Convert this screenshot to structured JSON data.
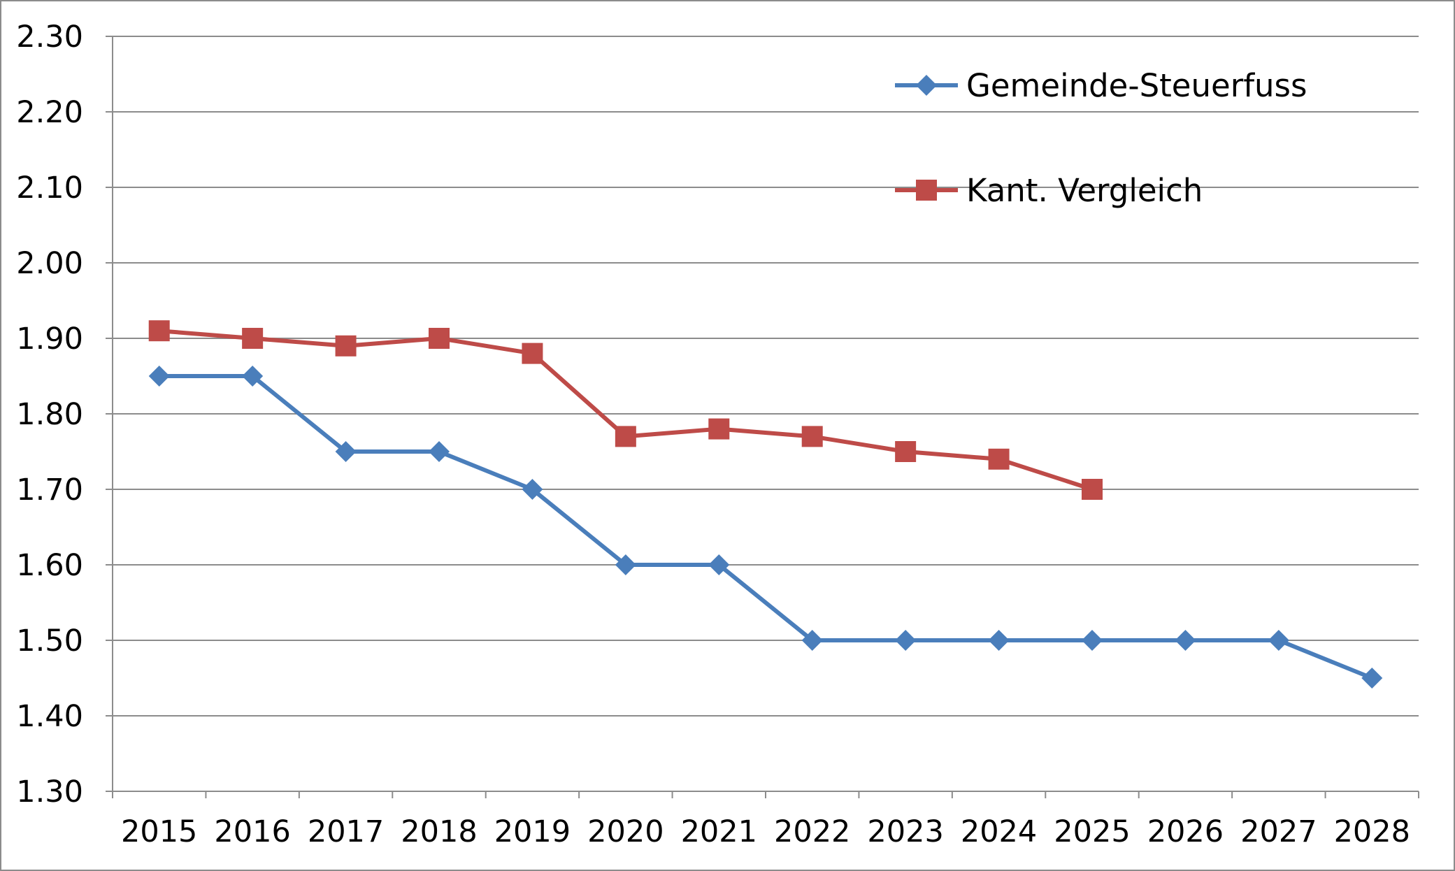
{
  "chart_data": {
    "type": "line",
    "title": "",
    "xlabel": "",
    "ylabel": "",
    "categories": [
      "2015",
      "2016",
      "2017",
      "2018",
      "2019",
      "2020",
      "2021",
      "2022",
      "2023",
      "2024",
      "2025",
      "2026",
      "2027",
      "2028"
    ],
    "ylim": [
      1.3,
      2.3
    ],
    "yticks": [
      "1.30",
      "1.40",
      "1.50",
      "1.60",
      "1.70",
      "1.80",
      "1.90",
      "2.00",
      "2.10",
      "2.20",
      "2.30"
    ],
    "grid": true,
    "legend_position": "top-right",
    "series": [
      {
        "name": "Gemeinde-Steuerfuss",
        "color": "#4a7ebb",
        "marker": "diamond",
        "values": [
          1.85,
          1.85,
          1.75,
          1.75,
          1.7,
          1.6,
          1.6,
          1.5,
          1.5,
          1.5,
          1.5,
          1.5,
          1.5,
          1.45
        ]
      },
      {
        "name": "Kant. Vergleich",
        "color": "#be4b48",
        "marker": "square",
        "values": [
          1.91,
          1.9,
          1.89,
          1.9,
          1.88,
          1.77,
          1.78,
          1.77,
          1.75,
          1.74,
          1.7,
          null,
          null,
          null
        ]
      }
    ]
  }
}
